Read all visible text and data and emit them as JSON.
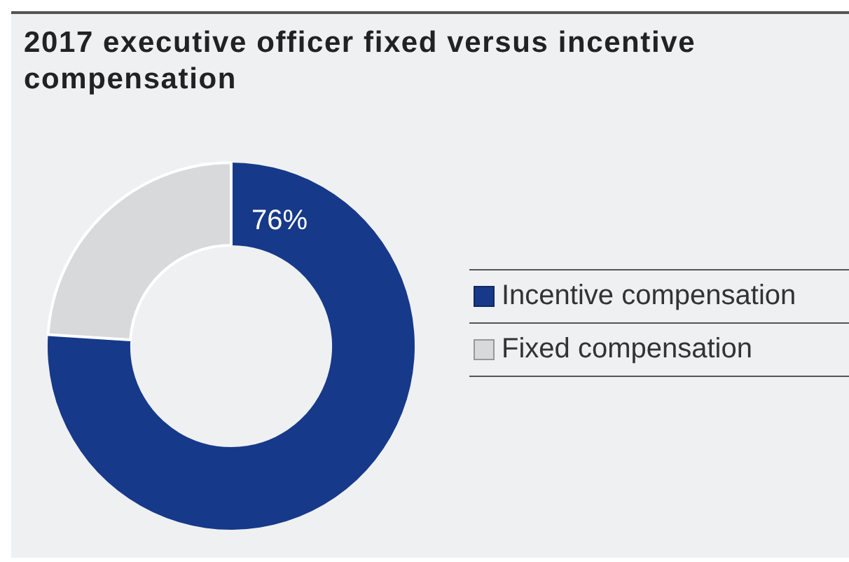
{
  "chart_data": {
    "type": "donut",
    "title": "2017 executive officer fixed versus incentive compensation",
    "categories": [
      "Incentive compensation",
      "Fixed compensation"
    ],
    "values": [
      76,
      24
    ],
    "colors": [
      "#17398a",
      "#d8d9db"
    ],
    "value_labels": [
      "76%",
      null
    ],
    "legend": "right"
  }
}
